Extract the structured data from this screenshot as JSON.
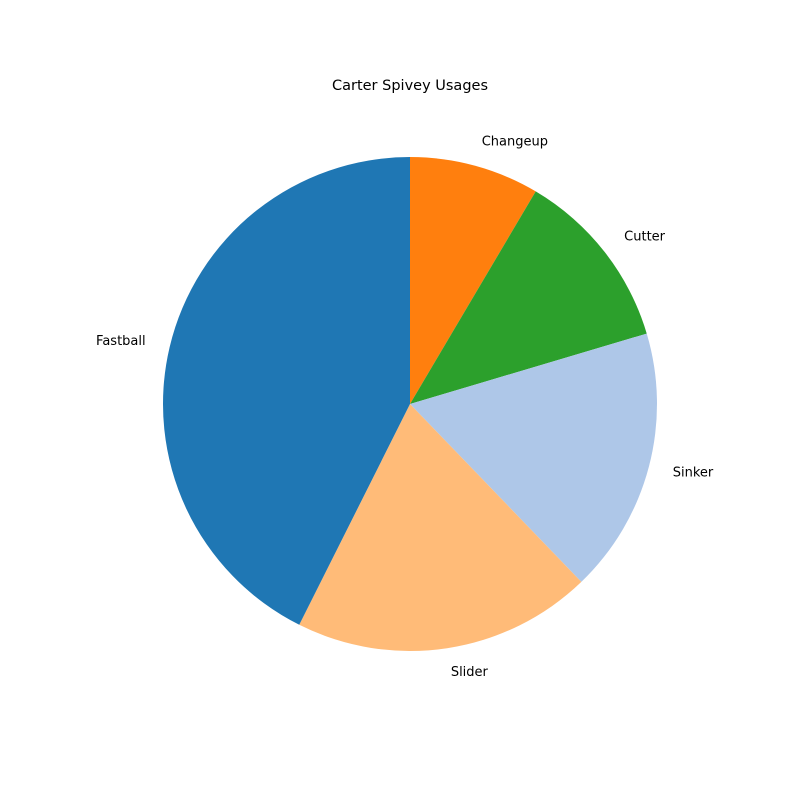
{
  "chart_data": {
    "type": "pie",
    "title": "Carter Spivey Usages",
    "slices": [
      {
        "label": "Changeup",
        "value": 8.5,
        "color": "#ff7f0e"
      },
      {
        "label": "Cutter",
        "value": 11.9,
        "color": "#2ca02c"
      },
      {
        "label": "Sinker",
        "value": 17.4,
        "color": "#aec7e8"
      },
      {
        "label": "Slider",
        "value": 19.6,
        "color": "#ffbb78"
      },
      {
        "label": "Fastball",
        "value": 42.6,
        "color": "#1f77b4"
      }
    ],
    "start_angle_deg": 90,
    "direction": "clockwise",
    "legend": "none",
    "labels_outside": true
  }
}
